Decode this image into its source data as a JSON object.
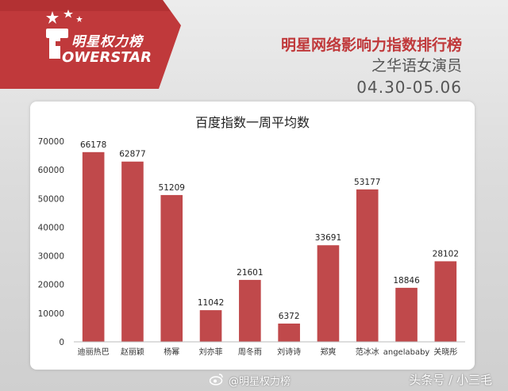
{
  "brand": {
    "name_cn": "明星权力榜",
    "name_en": "OWERSTAR",
    "logo_icon": "fist-logo-icon",
    "accent_color": "#c0393b"
  },
  "header": {
    "title": "明星网络影响力指数排行榜",
    "subtitle": "之华语女演员",
    "date_range": "04.30-05.06"
  },
  "footer": {
    "weibo_handle": "@明星权力榜",
    "weibo_icon": "weibo-icon",
    "source_tag": "头条号 / 小三毛"
  },
  "chart_data": {
    "type": "bar",
    "title": "百度指数一周平均数",
    "xlabel": "",
    "ylabel": "",
    "categories": [
      "迪丽热巴",
      "赵丽颖",
      "杨幂",
      "刘亦菲",
      "周冬雨",
      "刘诗诗",
      "郑爽",
      "范冰冰",
      "angelababy",
      "关晓彤"
    ],
    "values": [
      66178,
      62877,
      51209,
      11042,
      21601,
      6372,
      33691,
      53177,
      18846,
      28102
    ],
    "ylim": [
      0,
      70000
    ],
    "yticks": [
      0,
      10000,
      20000,
      30000,
      40000,
      50000,
      60000,
      70000
    ],
    "grid": false,
    "legend": "none",
    "bar_color": "#c0494b"
  }
}
